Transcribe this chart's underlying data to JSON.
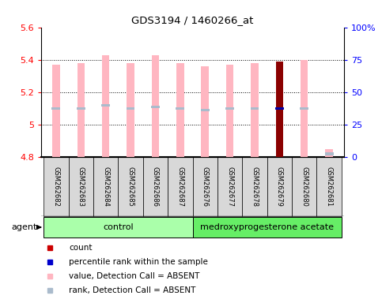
{
  "title": "GDS3194 / 1460266_at",
  "samples": [
    "GSM262682",
    "GSM262683",
    "GSM262684",
    "GSM262685",
    "GSM262686",
    "GSM262687",
    "GSM262676",
    "GSM262677",
    "GSM262678",
    "GSM262679",
    "GSM262680",
    "GSM262681"
  ],
  "ylim_left": [
    4.8,
    5.6
  ],
  "ylim_right": [
    0,
    100
  ],
  "yticks_left": [
    4.8,
    5.0,
    5.2,
    5.4,
    5.6
  ],
  "ytick_labels_left": [
    "4.8",
    "5",
    "5.2",
    "5.4",
    "5.6"
  ],
  "yticks_right": [
    0,
    25,
    50,
    75,
    100
  ],
  "ytick_labels_right": [
    "0",
    "25",
    "50",
    "75",
    "100%"
  ],
  "bar_bottom": 4.8,
  "value_tops": [
    5.37,
    5.38,
    5.43,
    5.38,
    5.43,
    5.38,
    5.36,
    5.37,
    5.38,
    5.39,
    5.4,
    4.85
  ],
  "rank_markers": [
    5.1,
    5.1,
    5.12,
    5.1,
    5.11,
    5.1,
    5.09,
    5.1,
    5.1,
    5.1,
    5.1,
    4.82
  ],
  "highlight_idx": 9,
  "bar_color_normal": "#FFB6C1",
  "bar_color_highlight": "#8B0000",
  "rank_color_normal": "#AABBCC",
  "rank_color_highlight": "#0000AA",
  "control_count": 6,
  "medro_count": 6,
  "control_label": "control",
  "medro_label": "medroxyprogesterone acetate",
  "group_color_light": "#AAFFAA",
  "group_color_dark": "#66DD66",
  "legend_items": [
    {
      "color": "#CC0000",
      "label": "count"
    },
    {
      "color": "#0000CC",
      "label": "percentile rank within the sample"
    },
    {
      "color": "#FFB6C1",
      "label": "value, Detection Call = ABSENT"
    },
    {
      "color": "#AABBCC",
      "label": "rank, Detection Call = ABSENT"
    }
  ],
  "agent_label": "agent"
}
